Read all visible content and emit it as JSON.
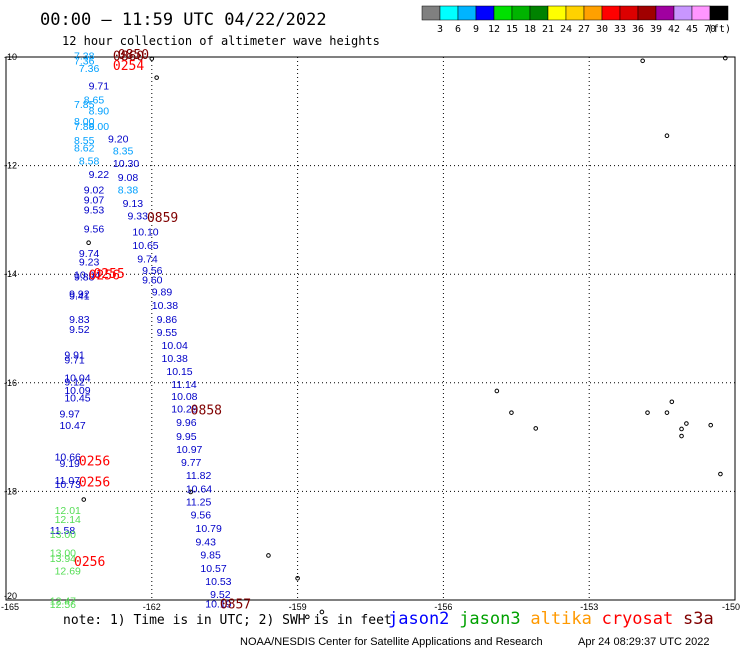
{
  "chart_data": {
    "type": "scatter",
    "title": "00:00 – 11:59 UTC 04/22/2022",
    "subtitle": "12 hour collection of altimeter wave heights",
    "xlim": [
      -165,
      -150
    ],
    "ylim": [
      -20,
      -10
    ],
    "x_ticks": [
      "-165",
      "-162",
      "-159",
      "-156",
      "-153",
      "-150"
    ],
    "y_ticks": [
      "-10",
      "-12",
      "-14",
      "-16",
      "-18",
      "-20"
    ],
    "grid": true,
    "colorbar": {
      "unit": "(ft)",
      "labels": [
        "3",
        "6",
        "9",
        "12",
        "15",
        "18",
        "21",
        "24",
        "27",
        "30",
        "33",
        "36",
        "39",
        "42",
        "45",
        "70"
      ],
      "colors": [
        "#808080",
        "#00ffff",
        "#00b4ff",
        "#0000ff",
        "#00e100",
        "#00b400",
        "#008200",
        "#ffff00",
        "#ffd200",
        "#ffa000",
        "#ff0000",
        "#dc0000",
        "#a00000",
        "#a000a0",
        "#c896ff",
        "#ff96ff",
        "#000000"
      ]
    },
    "note": "note:  1) Time is in UTC;  2) SWH is in feet",
    "legend": [
      {
        "name": "jason2",
        "color": "#0000ff"
      },
      {
        "name": "jason3",
        "color": "#00a000"
      },
      {
        "name": "altika",
        "color": "#ff9900"
      },
      {
        "name": "cryosat",
        "color": "#ff0000"
      },
      {
        "name": "s3a",
        "color": "#800000"
      }
    ],
    "footer_left": "NOAA/NESDIS Center for Satellite Applications and Research",
    "footer_right": "Apr 24 08:29:37 UTC 2022",
    "wave_points": [
      {
        "x": -163.6,
        "y": -10.05,
        "v": "7.38",
        "c": "#00a0ff"
      },
      {
        "x": -163.6,
        "y": -10.14,
        "v": "7.36",
        "c": "#00a0ff"
      },
      {
        "x": -163.5,
        "y": -10.28,
        "v": "7.36",
        "c": "#00a0ff"
      },
      {
        "x": -163.3,
        "y": -10.6,
        "v": "9.71",
        "c": "#0000c8"
      },
      {
        "x": -163.4,
        "y": -10.86,
        "v": "8.65",
        "c": "#00a0ff"
      },
      {
        "x": -163.6,
        "y": -10.94,
        "v": "7.85",
        "c": "#00a0ff"
      },
      {
        "x": -163.3,
        "y": -11.06,
        "v": "8.90",
        "c": "#00a0ff"
      },
      {
        "x": -163.6,
        "y": -11.25,
        "v": "8.00",
        "c": "#00a0ff"
      },
      {
        "x": -163.3,
        "y": -11.34,
        "v": "9.00",
        "c": "#00a0ff"
      },
      {
        "x": -163.6,
        "y": -11.34,
        "v": "7.88",
        "c": "#00a0ff"
      },
      {
        "x": -162.9,
        "y": -11.57,
        "v": "9.20",
        "c": "#0000c8"
      },
      {
        "x": -163.6,
        "y": -11.6,
        "v": "8.55",
        "c": "#00a0ff"
      },
      {
        "x": -163.6,
        "y": -11.74,
        "v": "8.62",
        "c": "#00a0ff"
      },
      {
        "x": -162.8,
        "y": -11.8,
        "v": "8.35",
        "c": "#00a0ff"
      },
      {
        "x": -163.5,
        "y": -11.98,
        "v": "8.58",
        "c": "#00a0ff"
      },
      {
        "x": -162.8,
        "y": -12.03,
        "v": "10.30",
        "c": "#0000c8"
      },
      {
        "x": -163.3,
        "y": -12.23,
        "v": "9.22",
        "c": "#0000c8"
      },
      {
        "x": -162.7,
        "y": -12.28,
        "v": "9.08",
        "c": "#0000c8"
      },
      {
        "x": -163.4,
        "y": -12.51,
        "v": "9.02",
        "c": "#0000c8"
      },
      {
        "x": -162.7,
        "y": -12.51,
        "v": "8.38",
        "c": "#00a0ff"
      },
      {
        "x": -163.4,
        "y": -12.7,
        "v": "9.07",
        "c": "#0000c8"
      },
      {
        "x": -162.6,
        "y": -12.76,
        "v": "9.13",
        "c": "#0000c8"
      },
      {
        "x": -163.4,
        "y": -12.88,
        "v": "9.53",
        "c": "#0000c8"
      },
      {
        "x": -162.5,
        "y": -12.99,
        "v": "9.33",
        "c": "#0000c8"
      },
      {
        "x": -163.4,
        "y": -13.23,
        "v": "9.56",
        "c": "#0000c8"
      },
      {
        "x": -162.4,
        "y": -13.29,
        "v": "10.10",
        "c": "#0000c8"
      },
      {
        "x": -162.4,
        "y": -13.54,
        "v": "10.65",
        "c": "#0000c8"
      },
      {
        "x": -163.5,
        "y": -13.68,
        "v": "9.74",
        "c": "#0000c8"
      },
      {
        "x": -162.3,
        "y": -13.78,
        "v": "9.74",
        "c": "#0000c8"
      },
      {
        "x": -163.5,
        "y": -13.84,
        "v": "9.23",
        "c": "#0000c8"
      },
      {
        "x": -162.2,
        "y": -14.0,
        "v": "9.56",
        "c": "#0000c8"
      },
      {
        "x": -163.6,
        "y": -14.08,
        "v": "10.04",
        "c": "#0000c8"
      },
      {
        "x": -163.6,
        "y": -14.12,
        "v": "9.88",
        "c": "#0000c8"
      },
      {
        "x": -162.2,
        "y": -14.17,
        "v": "9.60",
        "c": "#0000c8"
      },
      {
        "x": -162.0,
        "y": -14.39,
        "v": "9.89",
        "c": "#0000c8"
      },
      {
        "x": -163.7,
        "y": -14.43,
        "v": "9.92",
        "c": "#0000c8"
      },
      {
        "x": -163.7,
        "y": -14.47,
        "v": "9.41",
        "c": "#0000c8"
      },
      {
        "x": -162.0,
        "y": -14.64,
        "v": "10.38",
        "c": "#0000c8"
      },
      {
        "x": -163.7,
        "y": -14.9,
        "v": "9.83",
        "c": "#0000c8"
      },
      {
        "x": -161.9,
        "y": -14.9,
        "v": "9.86",
        "c": "#0000c8"
      },
      {
        "x": -163.7,
        "y": -15.08,
        "v": "9.52",
        "c": "#0000c8"
      },
      {
        "x": -161.9,
        "y": -15.14,
        "v": "9.55",
        "c": "#0000c8"
      },
      {
        "x": -161.8,
        "y": -15.38,
        "v": "10.04",
        "c": "#0000c8"
      },
      {
        "x": -163.8,
        "y": -15.55,
        "v": "9.91",
        "c": "#0000c8"
      },
      {
        "x": -161.8,
        "y": -15.62,
        "v": "10.38",
        "c": "#0000c8"
      },
      {
        "x": -163.8,
        "y": -15.64,
        "v": "9.71",
        "c": "#0000c8"
      },
      {
        "x": -161.7,
        "y": -15.86,
        "v": "10.15",
        "c": "#0000c8"
      },
      {
        "x": -163.8,
        "y": -15.98,
        "v": "10.04",
        "c": "#0000c8"
      },
      {
        "x": -163.8,
        "y": -16.05,
        "v": "9.12",
        "c": "#0000c8"
      },
      {
        "x": -161.6,
        "y": -16.1,
        "v": "11.14",
        "c": "#0000c8"
      },
      {
        "x": -163.8,
        "y": -16.21,
        "v": "10.09",
        "c": "#0000c8"
      },
      {
        "x": -161.6,
        "y": -16.32,
        "v": "10.08",
        "c": "#0000c8"
      },
      {
        "x": -163.8,
        "y": -16.34,
        "v": "10.45",
        "c": "#0000c8"
      },
      {
        "x": -161.6,
        "y": -16.55,
        "v": "10.28",
        "c": "#0000c8"
      },
      {
        "x": -163.9,
        "y": -16.64,
        "v": "9.97",
        "c": "#0000c8"
      },
      {
        "x": -161.5,
        "y": -16.8,
        "v": "9.96",
        "c": "#0000c8"
      },
      {
        "x": -163.9,
        "y": -16.85,
        "v": "10.47",
        "c": "#0000c8"
      },
      {
        "x": -161.5,
        "y": -17.05,
        "v": "9.95",
        "c": "#0000c8"
      },
      {
        "x": -161.5,
        "y": -17.29,
        "v": "10.97",
        "c": "#0000c8"
      },
      {
        "x": -164.0,
        "y": -17.43,
        "v": "10.66",
        "c": "#0000c8"
      },
      {
        "x": -163.9,
        "y": -17.55,
        "v": "9.19",
        "c": "#0000c8"
      },
      {
        "x": -161.4,
        "y": -17.53,
        "v": "9.77",
        "c": "#0000c8"
      },
      {
        "x": -161.3,
        "y": -17.77,
        "v": "11.82",
        "c": "#0000c8"
      },
      {
        "x": -164.0,
        "y": -17.86,
        "v": "11.07",
        "c": "#0000c8"
      },
      {
        "x": -164.0,
        "y": -17.94,
        "v": "10.73",
        "c": "#0000c8"
      },
      {
        "x": -161.3,
        "y": -18.02,
        "v": "10.64",
        "c": "#0000c8"
      },
      {
        "x": -161.3,
        "y": -18.26,
        "v": "11.25",
        "c": "#0000c8"
      },
      {
        "x": -164.0,
        "y": -18.42,
        "v": "12.01",
        "c": "#55dd55"
      },
      {
        "x": -161.2,
        "y": -18.5,
        "v": "9.56",
        "c": "#0000c8"
      },
      {
        "x": -164.0,
        "y": -18.58,
        "v": "12.14",
        "c": "#55dd55"
      },
      {
        "x": -161.1,
        "y": -18.75,
        "v": "10.79",
        "c": "#0000c8"
      },
      {
        "x": -164.1,
        "y": -18.78,
        "v": "11.58",
        "c": "#0000c8"
      },
      {
        "x": -164.1,
        "y": -18.86,
        "v": "13.00",
        "c": "#55dd55"
      },
      {
        "x": -161.1,
        "y": -19.0,
        "v": "9.43",
        "c": "#0000c8"
      },
      {
        "x": -164.1,
        "y": -19.2,
        "v": "13.00",
        "c": "#55dd55"
      },
      {
        "x": -161.0,
        "y": -19.24,
        "v": "9.85",
        "c": "#0000c8"
      },
      {
        "x": -164.1,
        "y": -19.3,
        "v": "13.94",
        "c": "#55dd55"
      },
      {
        "x": -161.0,
        "y": -19.48,
        "v": "10.57",
        "c": "#0000c8"
      },
      {
        "x": -164.0,
        "y": -19.53,
        "v": "12.69",
        "c": "#55dd55"
      },
      {
        "x": -160.9,
        "y": -19.72,
        "v": "10.53",
        "c": "#0000c8"
      },
      {
        "x": -160.8,
        "y": -19.96,
        "v": "9.52",
        "c": "#0000c8"
      },
      {
        "x": -164.1,
        "y": -20.08,
        "v": "12.47",
        "c": "#55dd55"
      },
      {
        "x": -164.1,
        "y": -20.15,
        "v": "12.56",
        "c": "#55dd55"
      },
      {
        "x": -160.9,
        "y": -20.14,
        "v": "10.19",
        "c": "#0000c8"
      }
    ],
    "time_labels": [
      {
        "x": -162.7,
        "y": -10.04,
        "v": "0850",
        "c": "#800000"
      },
      {
        "x": -162.8,
        "y": -10.06,
        "v": "0860",
        "c": "#800000"
      },
      {
        "x": -162.8,
        "y": -10.24,
        "v": "0254",
        "c": "#ff0000"
      },
      {
        "x": -162.1,
        "y": -13.04,
        "v": "0859",
        "c": "#800000"
      },
      {
        "x": -163.2,
        "y": -14.07,
        "v": "0255",
        "c": "#ff0000"
      },
      {
        "x": -163.3,
        "y": -14.1,
        "v": "0256",
        "c": "#ff0000"
      },
      {
        "x": -161.2,
        "y": -16.58,
        "v": "0858",
        "c": "#800000"
      },
      {
        "x": -163.5,
        "y": -17.52,
        "v": "0256",
        "c": "#ff0000"
      },
      {
        "x": -163.5,
        "y": -17.91,
        "v": "0256",
        "c": "#ff0000"
      },
      {
        "x": -163.6,
        "y": -19.37,
        "v": "0256",
        "c": "#ff0000"
      },
      {
        "x": -160.6,
        "y": -20.16,
        "v": "0857",
        "c": "#800000"
      }
    ],
    "islands": [
      {
        "x": -162.0,
        "y": -10.03
      },
      {
        "x": -161.9,
        "y": -10.38
      },
      {
        "x": -151.9,
        "y": -10.07
      },
      {
        "x": -151.4,
        "y": -11.45
      },
      {
        "x": -150.2,
        "y": -10.02
      },
      {
        "x": -163.3,
        "y": -13.42
      },
      {
        "x": -161.2,
        "y": -18.01
      },
      {
        "x": -159.0,
        "y": -19.6
      },
      {
        "x": -158.5,
        "y": -20.22
      },
      {
        "x": -158.8,
        "y": -20.31
      },
      {
        "x": -159.6,
        "y": -19.18
      },
      {
        "x": -163.4,
        "y": -18.15
      },
      {
        "x": -154.6,
        "y": -16.55
      },
      {
        "x": -154.1,
        "y": -16.84
      },
      {
        "x": -154.9,
        "y": -16.15
      },
      {
        "x": -151.8,
        "y": -16.55
      },
      {
        "x": -151.4,
        "y": -16.55
      },
      {
        "x": -151.0,
        "y": -16.75
      },
      {
        "x": -150.5,
        "y": -16.78
      },
      {
        "x": -151.3,
        "y": -16.35
      },
      {
        "x": -150.3,
        "y": -17.68
      },
      {
        "x": -151.1,
        "y": -16.85
      },
      {
        "x": -151.1,
        "y": -16.98
      }
    ]
  }
}
